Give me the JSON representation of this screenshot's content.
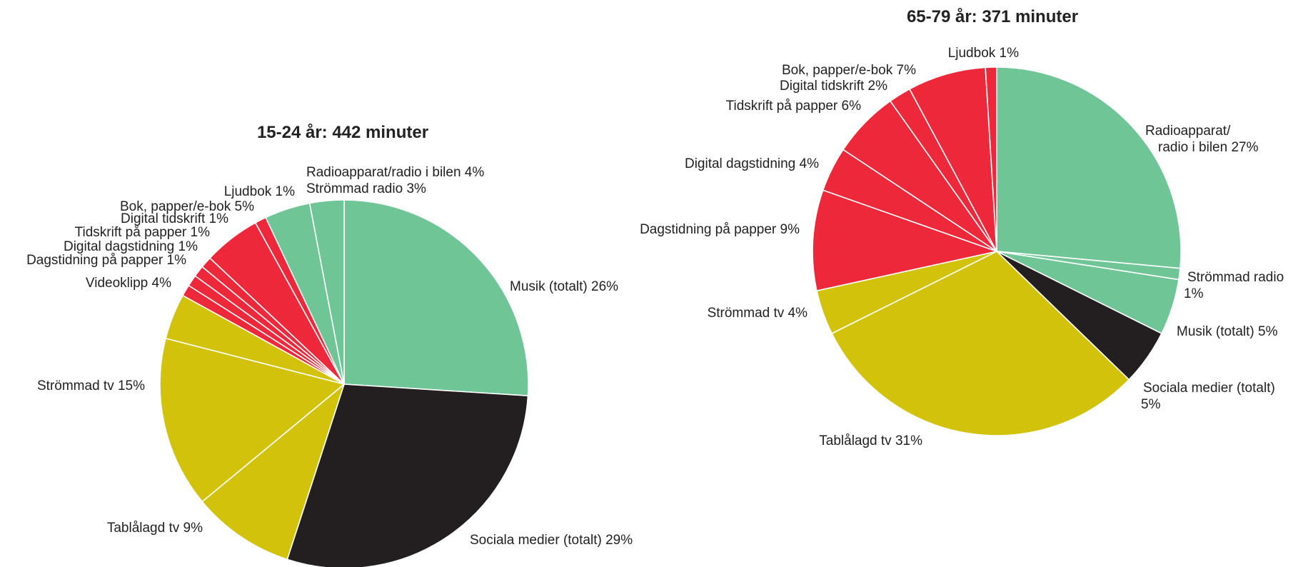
{
  "colors": {
    "audio": "#6fc596",
    "social": "#231f20",
    "video": "#d2c20c",
    "print": "#ed283a"
  },
  "chart_data": [
    {
      "type": "pie",
      "title": "15-24 år: 442 minuter",
      "slices": [
        {
          "label": "Musik (totalt) 26%",
          "value": 26,
          "color": "audio"
        },
        {
          "label": "Sociala medier (totalt) 29%",
          "value": 29,
          "color": "social"
        },
        {
          "label": "Tablålagd tv 9%",
          "value": 9,
          "color": "video"
        },
        {
          "label": "Strömmad tv 15%",
          "value": 15,
          "color": "video"
        },
        {
          "label": "Videoklipp 4%",
          "value": 4,
          "color": "video"
        },
        {
          "label": "Dagstidning på papper 1%",
          "value": 1,
          "color": "print"
        },
        {
          "label": "Digital dagstidning 1%",
          "value": 1,
          "color": "print"
        },
        {
          "label": "Tidskrift på papper 1%",
          "value": 1,
          "color": "print"
        },
        {
          "label": "Digital tidskrift 1%",
          "value": 1,
          "color": "print"
        },
        {
          "label": "Bok, papper/e-bok 5%",
          "value": 5,
          "color": "print"
        },
        {
          "label": "Ljudbok 1%",
          "value": 1,
          "color": "print"
        },
        {
          "label": "Radioapparat/radio i bilen 4%",
          "value": 4,
          "color": "audio"
        },
        {
          "label": "Strömmad radio 3%",
          "value": 3,
          "color": "audio"
        }
      ]
    },
    {
      "type": "pie",
      "title": "65-79 år: 371 minuter",
      "slices": [
        {
          "label": "Radioapparat/ radio i bilen 27%",
          "value": 27,
          "color": "audio"
        },
        {
          "label": "Strömmad radio 1%",
          "value": 1,
          "color": "audio"
        },
        {
          "label": "Musik (totalt) 5%",
          "value": 5,
          "color": "audio"
        },
        {
          "label": "Sociala medier (totalt) 5%",
          "value": 5,
          "color": "social"
        },
        {
          "label": "Tablålagd tv 31%",
          "value": 31,
          "color": "video"
        },
        {
          "label": "Strömmad tv 4%",
          "value": 4,
          "color": "video"
        },
        {
          "label": "Dagstidning på papper 9%",
          "value": 9,
          "color": "print"
        },
        {
          "label": "Digital dagstidning 4%",
          "value": 4,
          "color": "print"
        },
        {
          "label": "Tidskrift på papper 6%",
          "value": 6,
          "color": "print"
        },
        {
          "label": "Digital tidskrift 2%",
          "value": 2,
          "color": "print"
        },
        {
          "label": "Bok, papper/e-bok 7%",
          "value": 7,
          "color": "print"
        },
        {
          "label": "Ljudbok 1%",
          "value": 1,
          "color": "print"
        }
      ]
    }
  ]
}
